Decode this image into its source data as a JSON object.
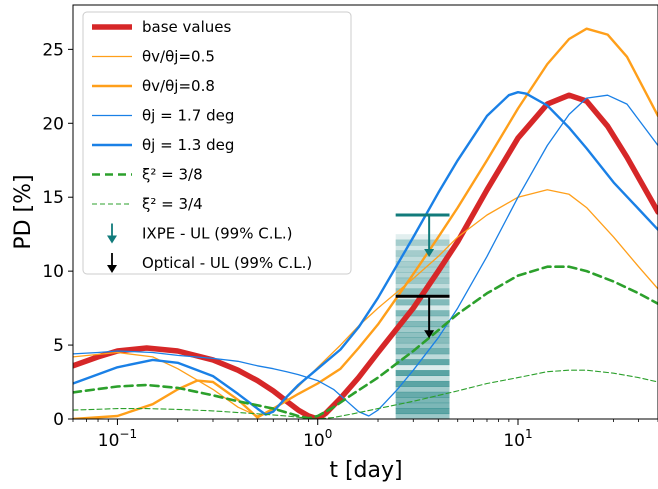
{
  "chart_data": {
    "type": "line",
    "xlabel": "t [day]",
    "ylabel": "PD [%]",
    "xscale": "log",
    "xlim": [
      0.06,
      50
    ],
    "ylim": [
      0,
      28
    ],
    "x_ticks": [
      {
        "value": 0.1,
        "base": "10",
        "exp": "−1"
      },
      {
        "value": 1,
        "base": "10",
        "exp": "0"
      },
      {
        "value": 10,
        "base": "10",
        "exp": "1"
      }
    ],
    "y_ticks": [
      0,
      5,
      10,
      15,
      20,
      25
    ],
    "legend_position": "upper-left",
    "series": [
      {
        "name": "base values",
        "color": "#d62728",
        "width": 5.5,
        "dash": "",
        "x": [
          0.06,
          0.08,
          0.1,
          0.14,
          0.2,
          0.3,
          0.4,
          0.5,
          0.6,
          0.7,
          0.8,
          0.9,
          1.0,
          1.1,
          1.3,
          1.6,
          2.0,
          3.0,
          4.0,
          5.0,
          7.0,
          10,
          14,
          18,
          22,
          28,
          35,
          50
        ],
        "y": [
          3.6,
          4.2,
          4.6,
          4.8,
          4.6,
          4.0,
          3.3,
          2.6,
          1.9,
          1.2,
          0.6,
          0.2,
          0.0,
          0.4,
          1.4,
          2.8,
          4.5,
          7.5,
          10.0,
          12.0,
          15.5,
          19.0,
          21.3,
          21.9,
          21.5,
          19.8,
          17.7,
          14.0
        ]
      },
      {
        "name": "θv/θj=0.5",
        "color": "#ff9f1a",
        "width": 1.3,
        "dash": "",
        "x": [
          0.06,
          0.1,
          0.15,
          0.2,
          0.3,
          0.4,
          0.5,
          0.6,
          0.8,
          1.0,
          1.3,
          1.6,
          2.0,
          3.0,
          4.0,
          5.0,
          7.0,
          10,
          14,
          18,
          22,
          30,
          40,
          50
        ],
        "y": [
          4.2,
          4.5,
          4.2,
          3.4,
          2.0,
          0.8,
          0.2,
          0.6,
          2.2,
          3.5,
          5.0,
          6.3,
          7.5,
          9.5,
          11.0,
          12.3,
          13.8,
          15.0,
          15.5,
          15.2,
          14.3,
          12.3,
          10.3,
          8.8
        ]
      },
      {
        "name": "θv/θj=0.8",
        "color": "#ff9f1a",
        "width": 2.4,
        "dash": "",
        "x": [
          0.06,
          0.1,
          0.15,
          0.2,
          0.25,
          0.3,
          0.4,
          0.5,
          0.6,
          0.8,
          1.0,
          1.3,
          1.6,
          2.0,
          3.0,
          4.0,
          5.0,
          7.0,
          10,
          14,
          18,
          22,
          28,
          35,
          50
        ],
        "y": [
          0.0,
          0.2,
          1.0,
          2.0,
          2.6,
          2.5,
          1.3,
          0.1,
          0.7,
          1.7,
          2.4,
          3.4,
          4.8,
          6.4,
          9.8,
          12.3,
          14.3,
          17.5,
          21.0,
          24.0,
          25.7,
          26.4,
          26.0,
          24.5,
          20.5
        ]
      },
      {
        "name": "θj = 1.7 deg",
        "color": "#1a80e6",
        "width": 1.3,
        "dash": "",
        "x": [
          0.06,
          0.08,
          0.1,
          0.15,
          0.2,
          0.3,
          0.4,
          0.5,
          0.6,
          0.7,
          0.8,
          1.0,
          1.2,
          1.4,
          1.6,
          1.8,
          2.0,
          2.5,
          3.0,
          4.0,
          5.0,
          7.0,
          10,
          14,
          18,
          22,
          28,
          35,
          50
        ],
        "y": [
          4.4,
          4.5,
          4.6,
          4.5,
          4.3,
          4.1,
          3.9,
          3.6,
          3.4,
          3.2,
          3.0,
          2.6,
          2.0,
          1.2,
          0.5,
          0.2,
          0.6,
          2.0,
          3.3,
          5.5,
          7.5,
          11.0,
          15.0,
          18.5,
          20.6,
          21.7,
          21.9,
          21.3,
          18.5
        ]
      },
      {
        "name": "θj = 1.3 deg",
        "color": "#1a80e6",
        "width": 2.4,
        "dash": "",
        "x": [
          0.06,
          0.1,
          0.15,
          0.2,
          0.3,
          0.4,
          0.5,
          0.55,
          0.6,
          0.7,
          0.8,
          1.0,
          1.3,
          1.6,
          2.0,
          3.0,
          4.0,
          5.0,
          7.0,
          9.0,
          10,
          11,
          14,
          18,
          22,
          30,
          40,
          50
        ],
        "y": [
          2.4,
          3.5,
          4.0,
          3.8,
          2.9,
          1.7,
          0.7,
          0.3,
          0.5,
          1.5,
          2.3,
          3.4,
          4.7,
          6.2,
          8.2,
          12.3,
          15.3,
          17.5,
          20.5,
          21.9,
          22.1,
          22.0,
          21.2,
          19.7,
          18.3,
          16.0,
          14.2,
          12.8
        ]
      },
      {
        "name": "ξ² = 3/8",
        "color": "#2ca02c",
        "width": 2.6,
        "dash": "8,5",
        "x": [
          0.06,
          0.1,
          0.14,
          0.2,
          0.3,
          0.4,
          0.6,
          0.8,
          0.9,
          1.0,
          1.2,
          1.5,
          2.0,
          3.0,
          4.0,
          5.0,
          7.0,
          10,
          14,
          18,
          22,
          30,
          40,
          50
        ],
        "y": [
          1.8,
          2.2,
          2.3,
          2.1,
          1.6,
          1.2,
          0.7,
          0.2,
          0.05,
          0.2,
          0.8,
          1.7,
          2.8,
          4.6,
          6.0,
          7.1,
          8.5,
          9.7,
          10.3,
          10.3,
          10.0,
          9.3,
          8.5,
          7.8
        ]
      },
      {
        "name": "ξ² = 3/4",
        "color": "#2ca02c",
        "width": 1.1,
        "dash": "5,3",
        "x": [
          0.06,
          0.1,
          0.14,
          0.2,
          0.3,
          0.5,
          0.7,
          0.9,
          1.0,
          1.2,
          1.5,
          2.0,
          3.0,
          5.0,
          7.0,
          10,
          14,
          18,
          22,
          30,
          40,
          50
        ],
        "y": [
          0.6,
          0.7,
          0.7,
          0.65,
          0.55,
          0.35,
          0.2,
          0.05,
          0.0,
          0.1,
          0.35,
          0.7,
          1.2,
          1.9,
          2.4,
          2.8,
          3.2,
          3.3,
          3.3,
          3.1,
          2.8,
          2.5
        ]
      }
    ],
    "upper_limits": [
      {
        "name": "IXPE - UL (99% C.L.)",
        "color": "#117b7b",
        "x_left": 2.45,
        "x_right": 4.55,
        "x_arrow": 3.6,
        "y": 13.8
      },
      {
        "name": "Optical - UL (99% C.L.)",
        "color": "#000000",
        "x_left": 2.45,
        "x_right": 4.55,
        "x_arrow": 3.6,
        "y": 8.3
      }
    ],
    "shaded_band": {
      "x_from": 2.45,
      "x_to": 4.55,
      "y_from": 0,
      "y_to": 12.5,
      "color": "#117b7b"
    }
  }
}
